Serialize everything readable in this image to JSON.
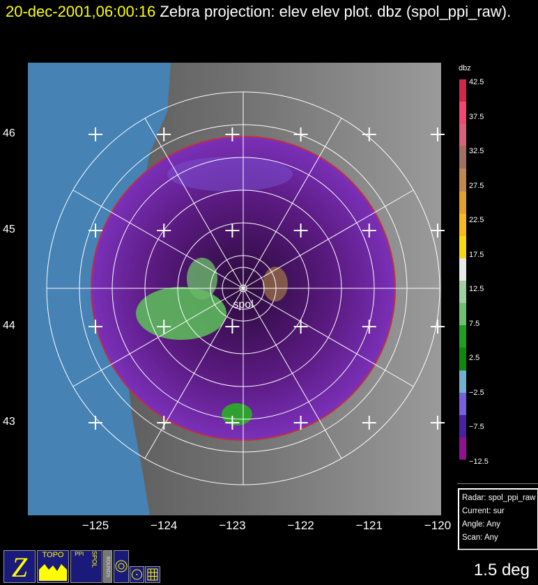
{
  "title": {
    "date": "20-dec-2001,06:00:16",
    "text": " Zebra projection: elev elev  plot.  dbz (spol_ppi_raw)."
  },
  "map": {
    "radar_label": "spol",
    "lat_labels": [
      "46",
      "45",
      "44",
      "43"
    ],
    "lon_labels": [
      "-125",
      "-124",
      "-123",
      "-122",
      "-121",
      "-120"
    ],
    "ocean_color": "#4682b4"
  },
  "colorbar": {
    "unit": "dbz",
    "labels": [
      "42.5",
      "37.5",
      "32.5",
      "27.5",
      "22.5",
      "17.5",
      "12.5",
      "7.5",
      "2.5",
      "-2.5",
      "-7.5",
      "-12.5"
    ],
    "colors": [
      "#d02848",
      "#f04870",
      "#d86078",
      "#a07060",
      "#c08850",
      "#e0a030",
      "#f8b820",
      "#f8d810",
      "#e8e8e8",
      "#a0d0a0",
      "#70c070",
      "#20a020",
      "#108810",
      "#70b0d0",
      "#7860e0",
      "#4820a0",
      "#901090"
    ]
  },
  "info": {
    "radar": "Radar: spol_ppi_raw",
    "current": "Current: sur",
    "angle": "Angle: Any",
    "scan": "Scan: Any"
  },
  "elevation": "1.5 deg",
  "icons": {
    "zebra": "Z",
    "topo": "TOPO",
    "ppi": "PPI",
    "spol": "SPOL",
    "bounds": "BOUNDS"
  }
}
